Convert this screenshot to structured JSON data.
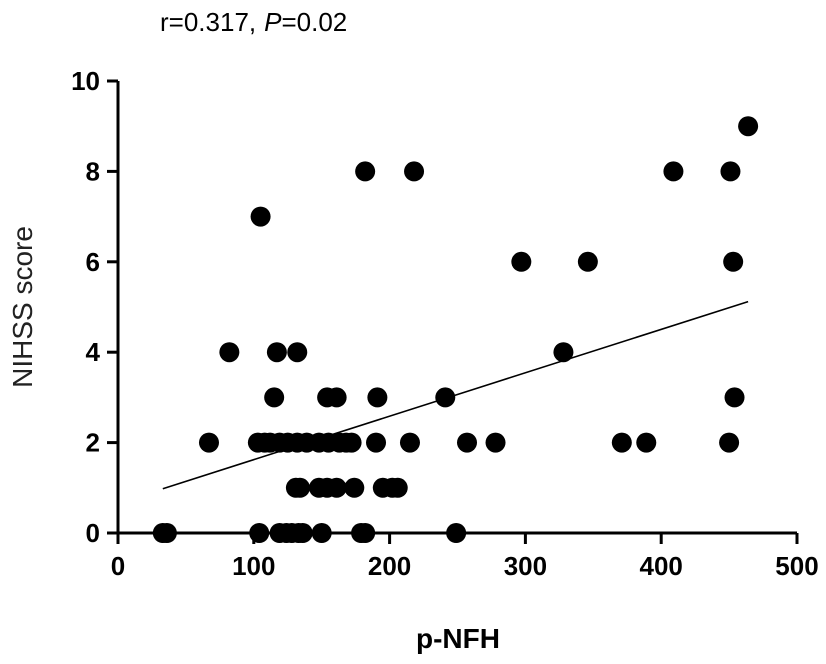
{
  "chart_data": {
    "type": "scatter",
    "title": "",
    "annotation": {
      "r_text": "r=0.317,",
      "p_symbol": "P",
      "p_value": "=0.02"
    },
    "xlabel": "p-NFH",
    "ylabel": "NIHSS score",
    "xlim": [
      0,
      500
    ],
    "ylim": [
      0,
      10
    ],
    "xticks": [
      0,
      100,
      200,
      300,
      400,
      500
    ],
    "yticks": [
      0,
      2,
      4,
      6,
      8,
      10
    ],
    "grid": false,
    "legend": "none",
    "point_color": "#000000",
    "series": [
      {
        "x": [
          33,
          36,
          104,
          119,
          124,
          128,
          133,
          136,
          150,
          179,
          182,
          249,
          131,
          134,
          148,
          154,
          161,
          174,
          195,
          202,
          206,
          67,
          103,
          108,
          112,
          119,
          125,
          132,
          139,
          148,
          155,
          163,
          168,
          172,
          190,
          215,
          257,
          278,
          371,
          389,
          450,
          115,
          154,
          161,
          191,
          241,
          454,
          82,
          117,
          132,
          328,
          297,
          346,
          453,
          105,
          182,
          218,
          409,
          451,
          464
        ],
        "y": [
          0,
          0,
          0,
          0,
          0,
          0,
          0,
          0,
          0,
          0,
          0,
          0,
          1,
          1,
          1,
          1,
          1,
          1,
          1,
          1,
          1,
          2,
          2,
          2,
          2,
          2,
          2,
          2,
          2,
          2,
          2,
          2,
          2,
          2,
          2,
          2,
          2,
          2,
          2,
          2,
          2,
          3,
          3,
          3,
          3,
          3,
          3,
          4,
          4,
          4,
          4,
          6,
          6,
          6,
          7,
          8,
          8,
          8,
          8,
          9
        ]
      }
    ],
    "regression_line": {
      "x": [
        33,
        464
      ],
      "y": [
        0.98,
        5.12
      ]
    }
  }
}
